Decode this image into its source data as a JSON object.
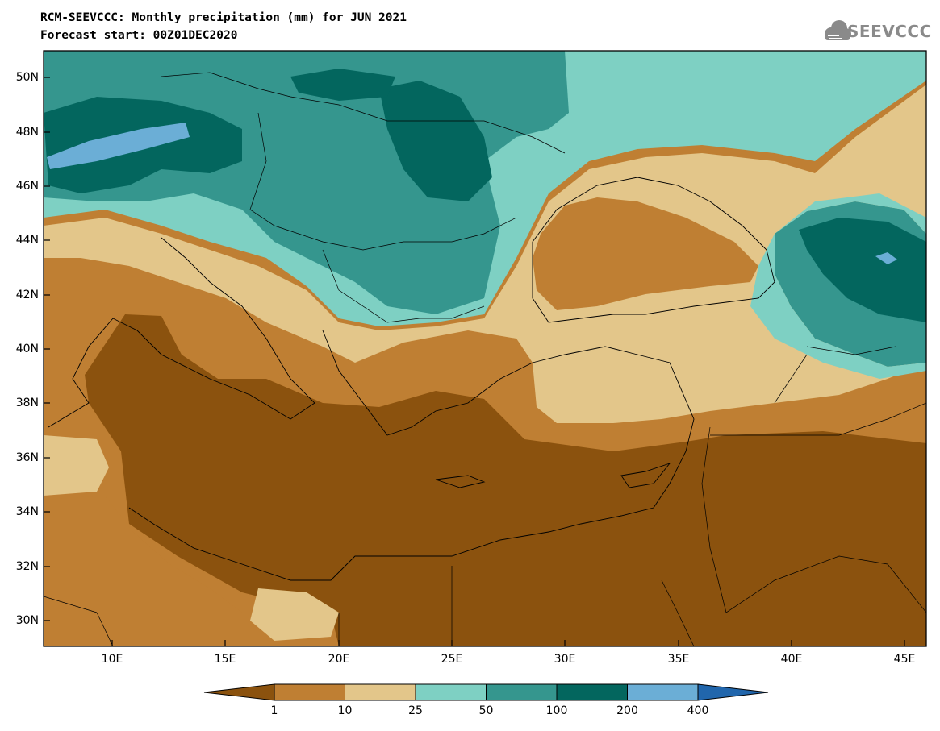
{
  "title_line1": "RCM-SEEVCCC: Monthly precipitation (mm) for JUN 2021",
  "title_line2": "Forecast start: 00Z01DEC2020",
  "logo_text": "SEEVCCC",
  "lat_labels": [
    "50N",
    "48N",
    "46N",
    "44N",
    "42N",
    "40N",
    "38N",
    "36N",
    "34N",
    "32N",
    "30N"
  ],
  "lon_labels": [
    "10E",
    "15E",
    "20E",
    "25E",
    "30E",
    "35E",
    "40E",
    "45E"
  ],
  "colorbar": {
    "labels": [
      "1",
      "10",
      "25",
      "50",
      "100",
      "200",
      "400"
    ],
    "colors": [
      "#8b520e",
      "#bf7f33",
      "#e3c68a",
      "#7ed0c3",
      "#35968e",
      "#03665e",
      "#6baed6",
      "#2166ac"
    ]
  }
}
